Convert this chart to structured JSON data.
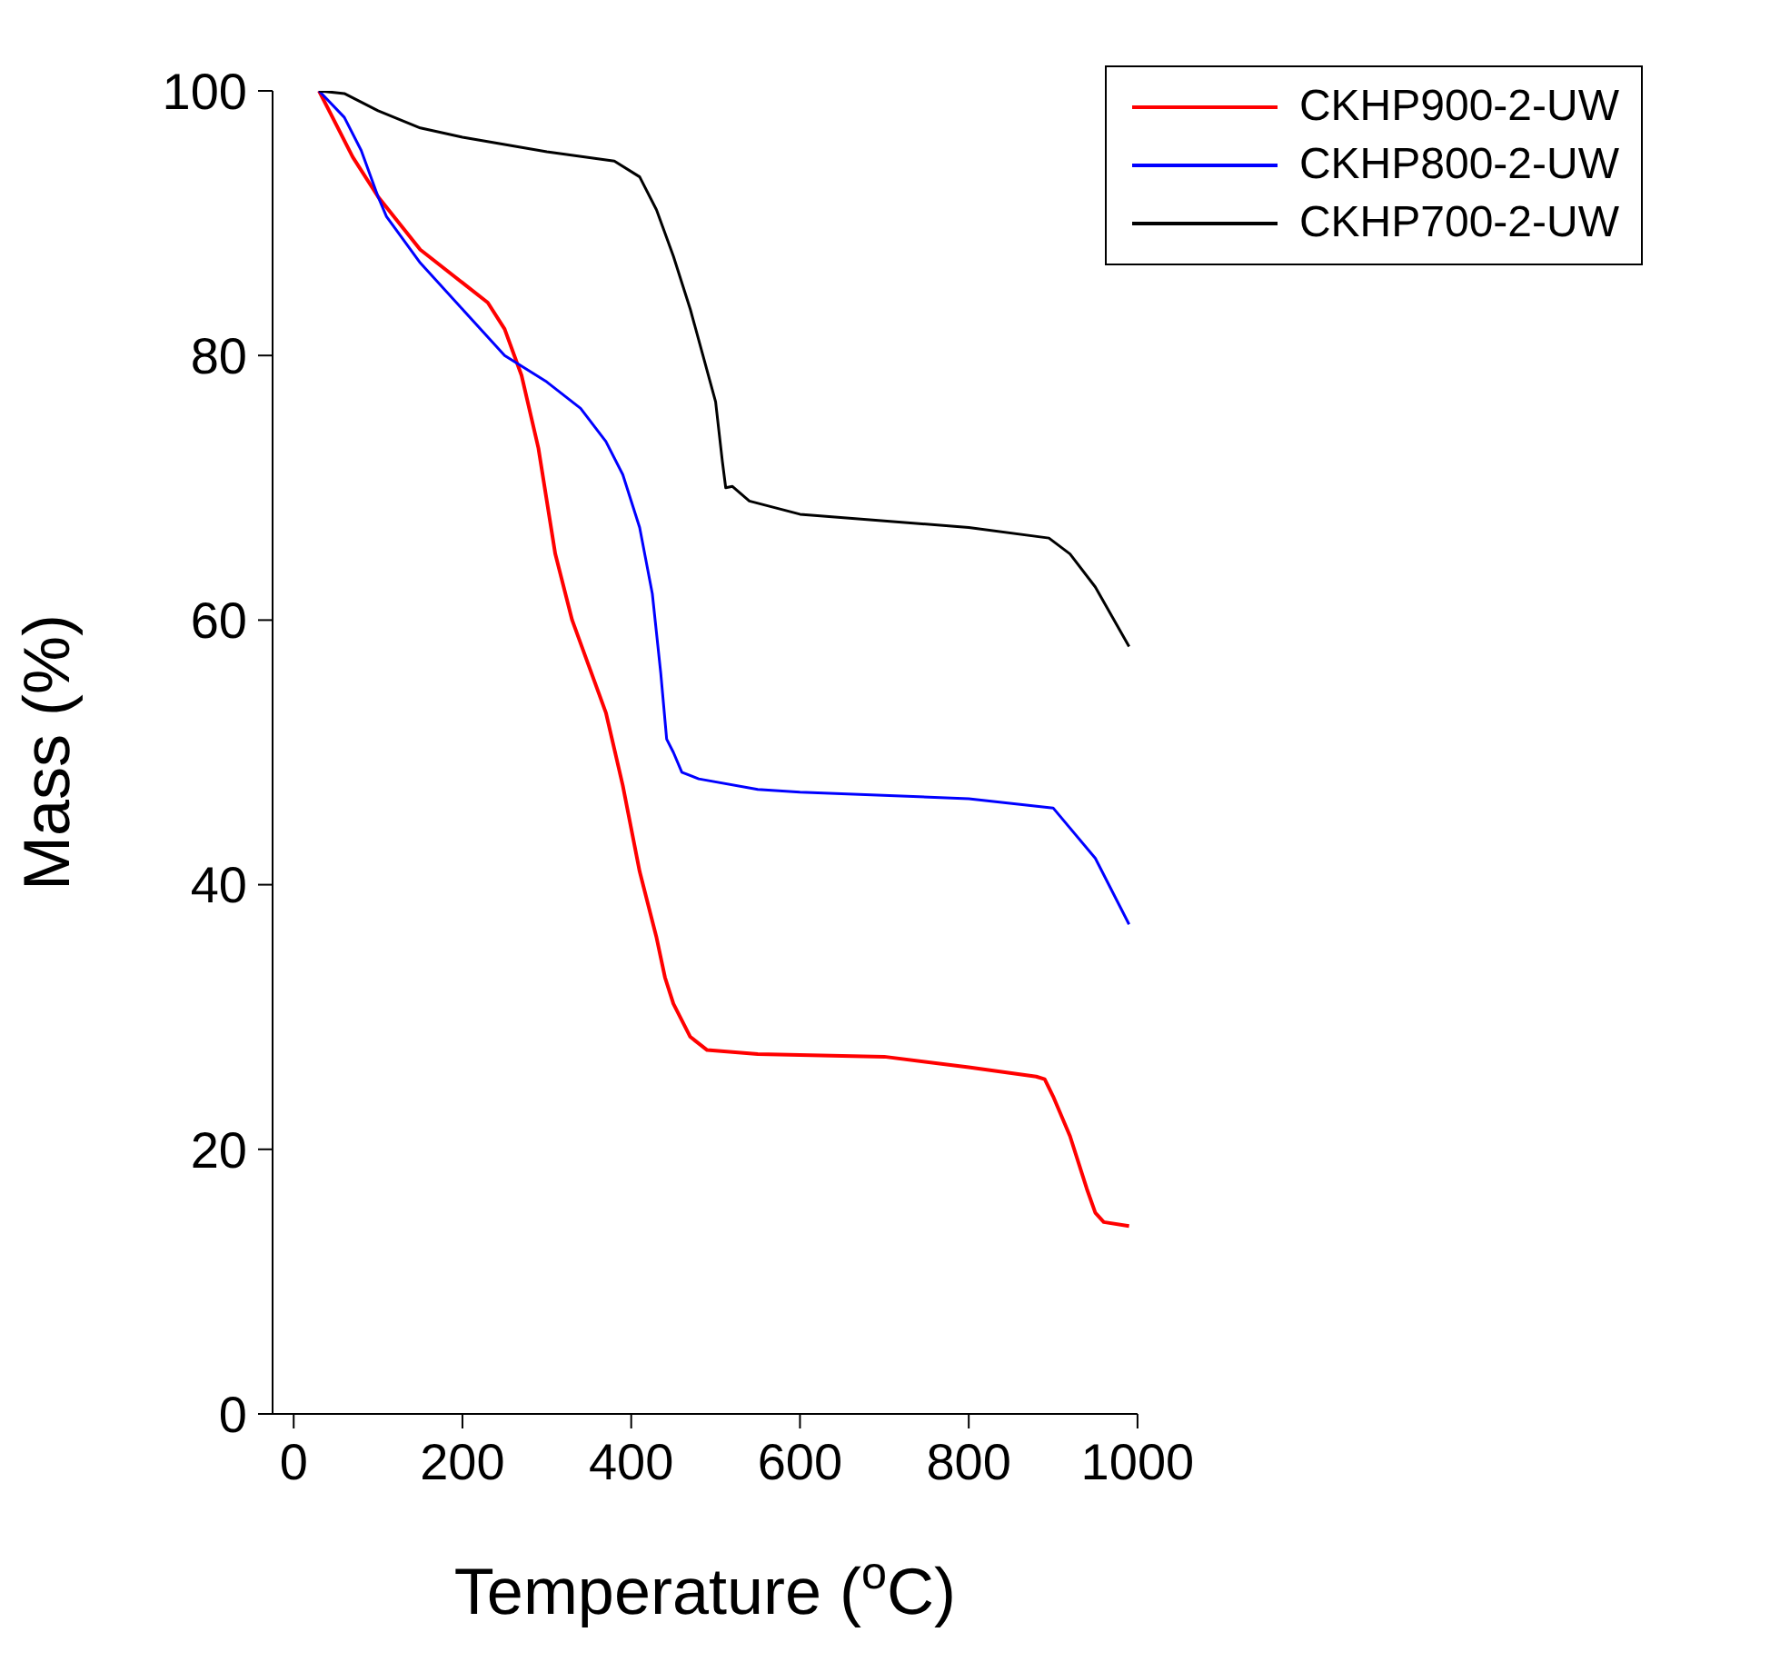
{
  "chart_data": {
    "type": "line",
    "xlabel": "Temperature ($^{o}$C)",
    "ylabel": "Mass (%)",
    "xlim": [
      -25,
      1000
    ],
    "xticks": [
      0,
      200,
      400,
      600,
      800,
      1000
    ],
    "ylim": [
      0,
      100
    ],
    "yticks": [
      0,
      20,
      40,
      60,
      80,
      100
    ],
    "grid": false,
    "legend": "top right",
    "marker": "none",
    "line_style": "solid",
    "series": [
      {
        "name": "CKHP900-2-UW",
        "color": "#ff0000",
        "x": [
          30,
          50,
          70,
          100,
          150,
          200,
          230,
          250,
          270,
          290,
          310,
          330,
          350,
          370,
          390,
          410,
          430,
          440,
          450,
          470,
          490,
          550,
          700,
          800,
          880,
          890,
          900,
          920,
          940,
          950,
          960,
          990
        ],
        "values": [
          100,
          97.5,
          95,
          92,
          88,
          85.5,
          84,
          82,
          78.5,
          73,
          65,
          60,
          56.5,
          53,
          47.5,
          41,
          36,
          33,
          31,
          28.5,
          27.5,
          27.2,
          27,
          26.2,
          25.5,
          25.3,
          24,
          21,
          17,
          15.2,
          14.5,
          14.2
        ]
      },
      {
        "name": "CKHP800-2-UW",
        "color": "#0000ff",
        "x": [
          30,
          60,
          80,
          100,
          110,
          150,
          200,
          250,
          300,
          340,
          370,
          390,
          410,
          425,
          435,
          442,
          450,
          460,
          480,
          550,
          600,
          800,
          900,
          950,
          990
        ],
        "values": [
          100,
          98,
          95.5,
          92,
          90.5,
          87,
          83.5,
          80,
          78,
          76,
          73.5,
          71,
          67,
          62,
          56,
          51,
          50,
          48.5,
          48,
          47.2,
          47,
          46.5,
          45.8,
          42,
          37
        ]
      },
      {
        "name": "CKHP700-2-UW",
        "color": "#000000",
        "x": [
          30,
          60,
          100,
          150,
          200,
          300,
          380,
          410,
          430,
          450,
          470,
          485,
          500,
          508,
          512,
          520,
          540,
          600,
          800,
          895,
          920,
          950,
          990
        ],
        "values": [
          100,
          99.8,
          98.5,
          97.2,
          96.5,
          95.4,
          94.7,
          93.5,
          91,
          87.5,
          83.5,
          80,
          76.5,
          72,
          70,
          70.1,
          69,
          68,
          67,
          66.2,
          65,
          62.5,
          58
        ]
      }
    ]
  }
}
